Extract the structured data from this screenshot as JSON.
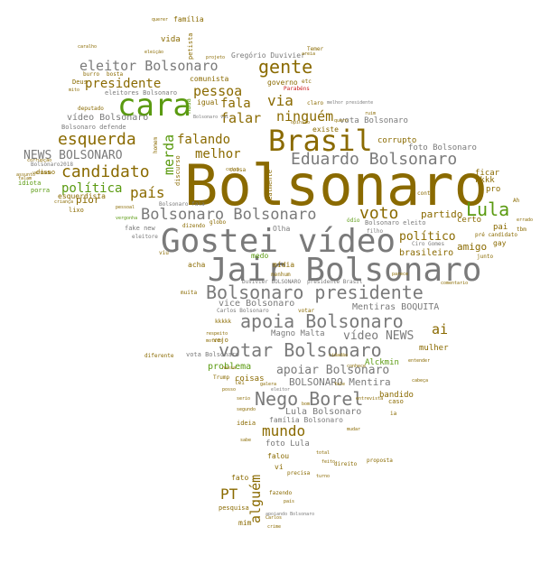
{
  "colors": {
    "olive": "#8a6a00",
    "gray": "#7a7a7a",
    "green": "#5a9a10",
    "dark": "#6a5000",
    "red": "#cc2020"
  },
  "words": [
    "Bolsonaro",
    "Gostei vídeo",
    "Jair Bolsonaro",
    "cara",
    "Brasil",
    "Bolsonaro presidente",
    "apoia Bolsonaro",
    "votar Bolsonaro",
    "Nego Borel",
    "Eduardo Bolsonaro",
    "Bolsonaro Bolsonaro",
    "gente",
    "eleitor Bolsonaro",
    "esquerda",
    "candidato",
    "presidente",
    "Lula",
    "voto",
    "país",
    "política",
    "NEWS BOLSONARO",
    "pessoa",
    "falar",
    "fala",
    "via",
    "ninguém",
    "falando",
    "melhor",
    "merda",
    "mundo",
    "PT",
    "alguém",
    "vídeo NEWS",
    "apoiar Bolsonaro",
    "BOLSONARO Mentira",
    "Mentiras BOQUITA",
    "vídeo Bolsonaro",
    "político",
    "partido",
    "ai",
    "amigo",
    "brasileiro",
    "pior",
    "Lula Bolsonaro",
    "vice Bolsonaro",
    "problema",
    "Magno Malta",
    "esquerdista",
    "pai",
    "certo",
    "corrupto",
    "kkkk",
    "pro",
    "ficar",
    "foto Bolsonaro",
    "vota Bolsonaro",
    "Alckmin",
    "mulher",
    "bandido",
    "coisas",
    "comunista",
    "governo",
    "igual",
    "vida",
    "família",
    "Gregório Duvivier",
    "eleitores Bolsonaro",
    "deputado",
    "Bolsonaro defende",
    "idiota",
    "porra",
    "Deus",
    "Parabéns",
    "foto Lula",
    "fato",
    "mim",
    "pesquisa",
    "vi",
    "falou",
    "família Bolsonaro",
    "acha",
    "mídia",
    "medo",
    "fake new",
    "eleitore",
    "dizendo",
    "Trump",
    "Olha",
    "existe",
    "ideia",
    "vejo",
    "lei",
    "caso",
    "conta",
    "vota Bolsonaro",
    "Bolsonaro eleito",
    "Ciro Gomes",
    "junto",
    "gay",
    "Ah",
    "tbm",
    "kkkkk",
    "coisa",
    "disso",
    "lixo",
    "burro",
    "bosta",
    "querer",
    "caralho",
    "eleição",
    "mito",
    "etc",
    "claro",
    "Temer",
    "areia",
    "nenhum",
    "Duvivier BOLSONARO",
    "presidente Brasil",
    "Carlos Bolsonaro",
    "votar",
    "muita",
    "direito",
    "proposta",
    "fazendo",
    "turno",
    "precisa",
    "opinião",
    "discurso",
    "realmente",
    "petista",
    "nada",
    "Bolsonaro fala",
    "Bolsonaro2018",
    "homem",
    "corrupção",
    "projeto",
    "falam",
    "verdade",
    "diferente",
    "ódio",
    "pré candidato",
    "comentario",
    "mudar",
    "cabeça",
    "filho",
    "errado",
    "entender",
    "vergonha",
    "criança",
    "assunto",
    "Bolsonaro vai",
    "ruim",
    "ia",
    "serio",
    "melhor presidente",
    "nessa",
    "galera",
    "crime",
    "Carlos",
    "eleitor",
    "país",
    "total",
    "feito",
    "apoiando Bolsonaro",
    "viu",
    "respeito",
    "motivo",
    "segundo",
    "globo",
    "quero",
    "bom",
    "cidadão",
    "pessoal",
    "coisa",
    "parece",
    "posso",
    "sabe",
    "conhece",
    "fale",
    "entrevista"
  ]
}
